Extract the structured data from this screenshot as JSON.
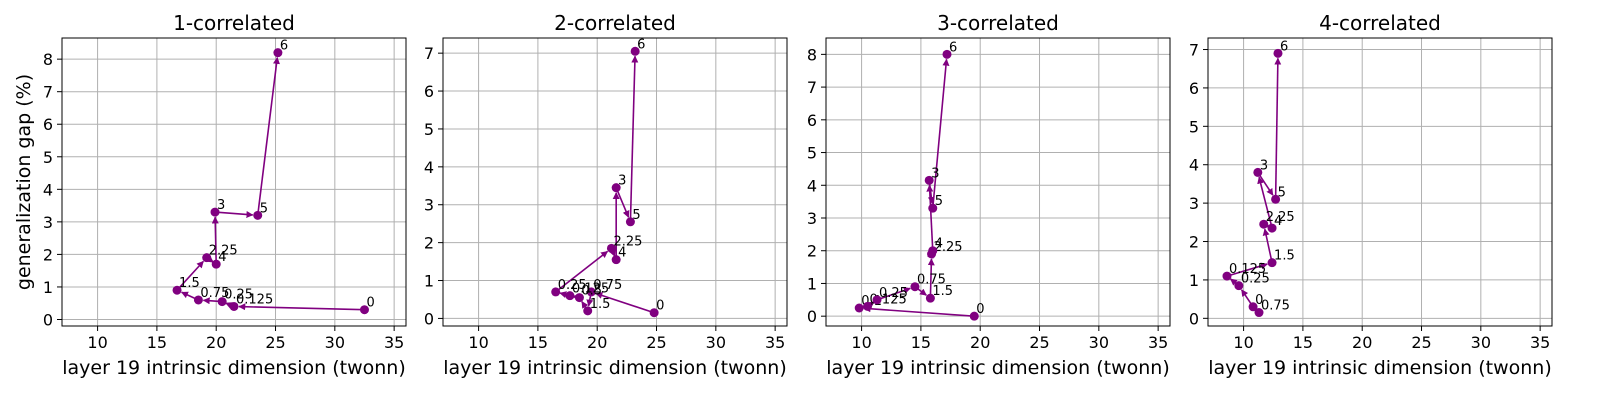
{
  "chart_data": [
    {
      "type": "line",
      "title": "1-correlated",
      "xlabel": "layer 19 intrinsic dimension (twonn)",
      "ylabel": "generalization gap (%)",
      "xlim": [
        7,
        36
      ],
      "ylim": [
        -0.2,
        8.65
      ],
      "xticks": [
        10,
        15,
        20,
        25,
        30,
        35
      ],
      "yticks": [
        0,
        1,
        2,
        3,
        4,
        5,
        6,
        7,
        8
      ],
      "grid": true,
      "color": "#800080",
      "series": [
        {
          "points": [
            {
              "x": 32.5,
              "y": 0.3,
              "label": "0"
            },
            {
              "x": 21.5,
              "y": 0.4,
              "label": "0.125"
            },
            {
              "x": 20.5,
              "y": 0.55,
              "label": "0.25"
            },
            {
              "x": 18.5,
              "y": 0.6,
              "label": "0.75"
            },
            {
              "x": 16.7,
              "y": 0.9,
              "label": "1.5"
            },
            {
              "x": 19.2,
              "y": 1.9,
              "label": "2.25"
            },
            {
              "x": 20.0,
              "y": 1.7,
              "label": "4"
            },
            {
              "x": 19.9,
              "y": 3.3,
              "label": "3"
            },
            {
              "x": 23.5,
              "y": 3.2,
              "label": "5"
            },
            {
              "x": 25.2,
              "y": 8.2,
              "label": "6"
            }
          ]
        }
      ]
    },
    {
      "type": "line",
      "title": "2-correlated",
      "xlabel": "layer 19 intrinsic dimension (twonn)",
      "ylabel": "",
      "xlim": [
        7,
        36
      ],
      "ylim": [
        -0.2,
        7.4
      ],
      "xticks": [
        10,
        15,
        20,
        25,
        30,
        35
      ],
      "yticks": [
        0,
        1,
        2,
        3,
        4,
        5,
        6,
        7
      ],
      "grid": true,
      "color": "#800080",
      "series": [
        {
          "points": [
            {
              "x": 24.8,
              "y": 0.15,
              "label": "0"
            },
            {
              "x": 19.5,
              "y": 0.7,
              "label": "0.75"
            },
            {
              "x": 19.2,
              "y": 0.2,
              "label": "1.5"
            },
            {
              "x": 18.5,
              "y": 0.55,
              "label": "0.5"
            },
            {
              "x": 17.7,
              "y": 0.6,
              "label": "0.125"
            },
            {
              "x": 16.5,
              "y": 0.7,
              "label": "0.25"
            },
            {
              "x": 21.2,
              "y": 1.85,
              "label": "2.25"
            },
            {
              "x": 21.6,
              "y": 1.55,
              "label": "4"
            },
            {
              "x": 21.6,
              "y": 3.45,
              "label": "3"
            },
            {
              "x": 22.8,
              "y": 2.55,
              "label": "5"
            },
            {
              "x": 23.2,
              "y": 7.05,
              "label": "6"
            }
          ]
        }
      ]
    },
    {
      "type": "line",
      "title": "3-correlated",
      "xlabel": "layer 19 intrinsic dimension (twonn)",
      "ylabel": "",
      "xlim": [
        7,
        36
      ],
      "ylim": [
        -0.3,
        8.5
      ],
      "xticks": [
        10,
        15,
        20,
        25,
        30,
        35
      ],
      "yticks": [
        0,
        1,
        2,
        3,
        4,
        5,
        6,
        7,
        8
      ],
      "grid": true,
      "color": "#800080",
      "series": [
        {
          "points": [
            {
              "x": 19.5,
              "y": 0.0,
              "label": "0"
            },
            {
              "x": 9.8,
              "y": 0.25,
              "label": "0.1"
            },
            {
              "x": 10.5,
              "y": 0.3,
              "label": "0.125"
            },
            {
              "x": 11.3,
              "y": 0.5,
              "label": "0.25"
            },
            {
              "x": 14.5,
              "y": 0.9,
              "label": "0.75"
            },
            {
              "x": 15.8,
              "y": 0.55,
              "label": "1.5"
            },
            {
              "x": 15.9,
              "y": 1.9,
              "label": "2.25"
            },
            {
              "x": 16.0,
              "y": 2.0,
              "label": "4"
            },
            {
              "x": 15.7,
              "y": 4.15,
              "label": "3"
            },
            {
              "x": 16.0,
              "y": 3.3,
              "label": "5"
            },
            {
              "x": 17.2,
              "y": 8.0,
              "label": "6"
            }
          ]
        }
      ]
    },
    {
      "type": "line",
      "title": "4-correlated",
      "xlabel": "layer 19 intrinsic dimension (twonn)",
      "ylabel": "",
      "xlim": [
        7,
        36
      ],
      "ylim": [
        -0.2,
        7.3
      ],
      "xticks": [
        10,
        15,
        20,
        25,
        30,
        35
      ],
      "yticks": [
        0,
        1,
        2,
        3,
        4,
        5,
        6,
        7
      ],
      "grid": true,
      "color": "#800080",
      "series": [
        {
          "points": [
            {
              "x": 11.3,
              "y": 0.15,
              "label": "0.75"
            },
            {
              "x": 10.8,
              "y": 0.3,
              "label": "0"
            },
            {
              "x": 9.6,
              "y": 0.85,
              "label": "0.25"
            },
            {
              "x": 8.6,
              "y": 1.1,
              "label": "0.125"
            },
            {
              "x": 12.4,
              "y": 1.45,
              "label": "1.5"
            },
            {
              "x": 11.7,
              "y": 2.45,
              "label": "2.25"
            },
            {
              "x": 12.4,
              "y": 2.35,
              "label": "4"
            },
            {
              "x": 11.2,
              "y": 3.8,
              "label": "3"
            },
            {
              "x": 12.7,
              "y": 3.1,
              "label": "5"
            },
            {
              "x": 12.9,
              "y": 6.9,
              "label": "6"
            }
          ]
        }
      ]
    }
  ]
}
